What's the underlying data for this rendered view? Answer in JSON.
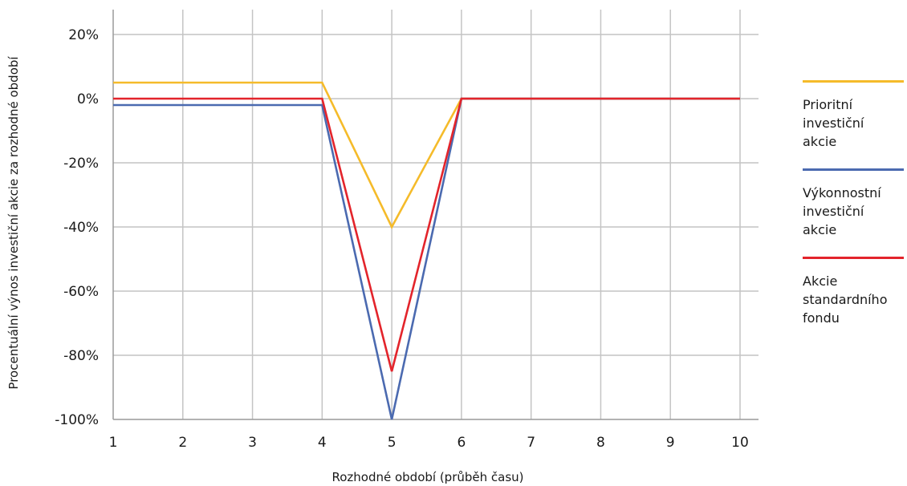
{
  "chart_data": {
    "type": "line",
    "title": "",
    "xlabel": "Rozhodné období (průběh času)",
    "ylabel": "Procentuální výnos investiční akcie za rozhodné období",
    "x": [
      1,
      2,
      3,
      4,
      5,
      6,
      7,
      8,
      9,
      10
    ],
    "xlim": [
      1,
      10
    ],
    "ylim": [
      -100,
      20
    ],
    "x_ticks": [
      "1",
      "2",
      "3",
      "4",
      "5",
      "6",
      "7",
      "8",
      "9",
      "10"
    ],
    "y_ticks": [
      "20%",
      "0%",
      "-20%",
      "-40%",
      "-60%",
      "-80%",
      "-100%"
    ],
    "y_tick_values": [
      20,
      0,
      -20,
      -40,
      -60,
      -80,
      -100
    ],
    "grid": true,
    "legend_position": "right",
    "series": [
      {
        "name": "Prioritní investiční akcie",
        "color": "#f5bb2a",
        "values": [
          5,
          5,
          5,
          5,
          -40,
          0,
          0,
          0,
          0,
          0
        ]
      },
      {
        "name": "Výkonnostní investiční akcie",
        "color": "#4b6ab0",
        "values": [
          -2,
          -2,
          -2,
          -2,
          -100,
          0,
          0,
          0,
          0,
          0
        ]
      },
      {
        "name": "Akcie standardního fondu",
        "color": "#e3242b",
        "values": [
          0,
          0,
          0,
          0,
          -85,
          0,
          0,
          0,
          0,
          0
        ]
      }
    ]
  },
  "legend": {
    "items": [
      {
        "label": "Prioritní investiční akcie",
        "color": "#f5bb2a"
      },
      {
        "label": "Výkonnostní investiční akcie",
        "color": "#4b6ab0"
      },
      {
        "label": "Akcie standardního fondu",
        "color": "#e3242b"
      }
    ]
  }
}
